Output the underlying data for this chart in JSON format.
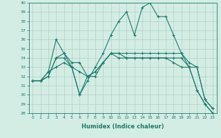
{
  "xlabel": "Humidex (Indice chaleur)",
  "x": [
    0,
    1,
    2,
    3,
    4,
    5,
    6,
    7,
    8,
    9,
    10,
    11,
    12,
    13,
    14,
    15,
    16,
    17,
    18,
    19,
    20,
    21,
    22,
    23
  ],
  "series": [
    [
      31.5,
      31.5,
      32.5,
      36.0,
      34.5,
      33.5,
      33.5,
      32.0,
      32.5,
      33.5,
      34.5,
      34.5,
      34.5,
      34.5,
      34.5,
      34.5,
      34.5,
      34.5,
      34.5,
      34.5,
      33.5,
      33.0,
      29.5,
      28.5
    ],
    [
      31.5,
      31.5,
      32.5,
      33.0,
      33.5,
      33.0,
      32.5,
      32.0,
      32.5,
      33.5,
      34.5,
      34.0,
      34.0,
      34.0,
      34.0,
      34.0,
      34.0,
      34.0,
      33.5,
      33.0,
      33.0,
      33.0,
      29.5,
      28.5
    ],
    [
      31.5,
      31.5,
      32.0,
      34.0,
      34.0,
      33.0,
      30.0,
      32.0,
      32.0,
      33.5,
      34.5,
      34.5,
      34.0,
      34.0,
      34.0,
      34.0,
      34.0,
      34.0,
      34.0,
      34.0,
      33.0,
      30.5,
      29.0,
      28.0
    ],
    [
      31.5,
      31.5,
      32.0,
      34.0,
      34.5,
      33.0,
      30.0,
      31.5,
      33.0,
      34.5,
      36.5,
      38.0,
      39.0,
      36.5,
      39.5,
      40.0,
      38.5,
      38.5,
      36.5,
      34.5,
      33.0,
      30.5,
      29.0,
      28.0
    ]
  ],
  "line_color": "#1a7a6a",
  "bg_color": "#d4ede4",
  "grid_color": "#aed0c4",
  "ylim": [
    28,
    40
  ],
  "yticks": [
    28,
    29,
    30,
    31,
    32,
    33,
    34,
    35,
    36,
    37,
    38,
    39,
    40
  ],
  "xticks": [
    0,
    1,
    2,
    3,
    4,
    5,
    6,
    7,
    8,
    9,
    10,
    11,
    12,
    13,
    14,
    15,
    16,
    17,
    18,
    19,
    20,
    21,
    22,
    23
  ],
  "marker": "+",
  "markersize": 3,
  "linewidth": 0.8
}
